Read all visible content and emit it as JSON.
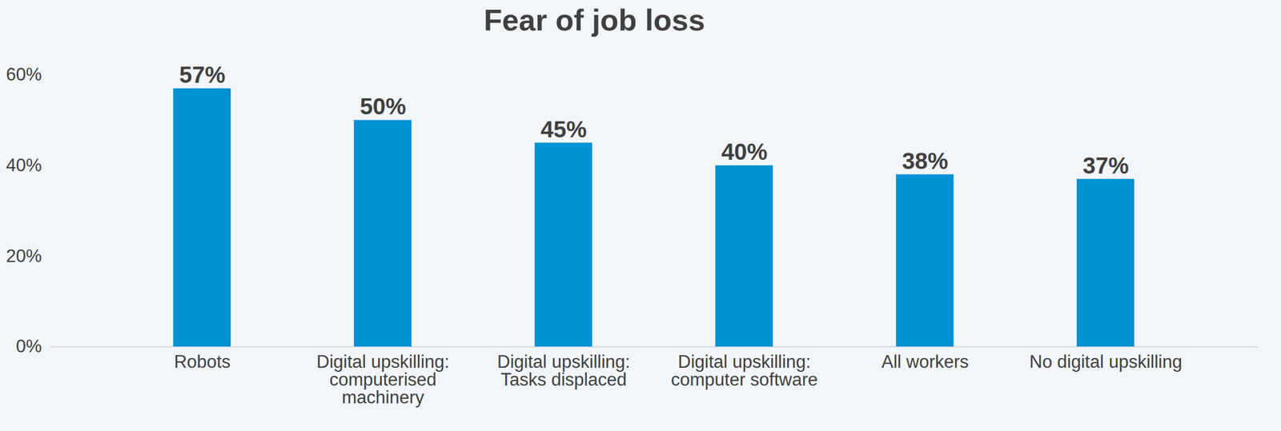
{
  "chart_data": {
    "type": "bar",
    "title": "Fear of job loss",
    "categories": [
      "Robots",
      "Digital upskilling: computerised machinery",
      "Digital upskilling: Tasks displaced",
      "Digital upskilling: computer software",
      "All workers",
      "No digital upskilling"
    ],
    "values": [
      57,
      50,
      45,
      40,
      38,
      37
    ],
    "value_labels": [
      "57%",
      "50%",
      "45%",
      "40%",
      "38%",
      "37%"
    ],
    "color": "#0091d5",
    "ylim": [
      0,
      60
    ],
    "yticks": [
      {
        "value": 0,
        "label": "0%"
      },
      {
        "value": 20,
        "label": "20%"
      },
      {
        "value": 40,
        "label": "40%"
      },
      {
        "value": 60,
        "label": "60%"
      }
    ],
    "grid": false,
    "data_labels": true
  }
}
